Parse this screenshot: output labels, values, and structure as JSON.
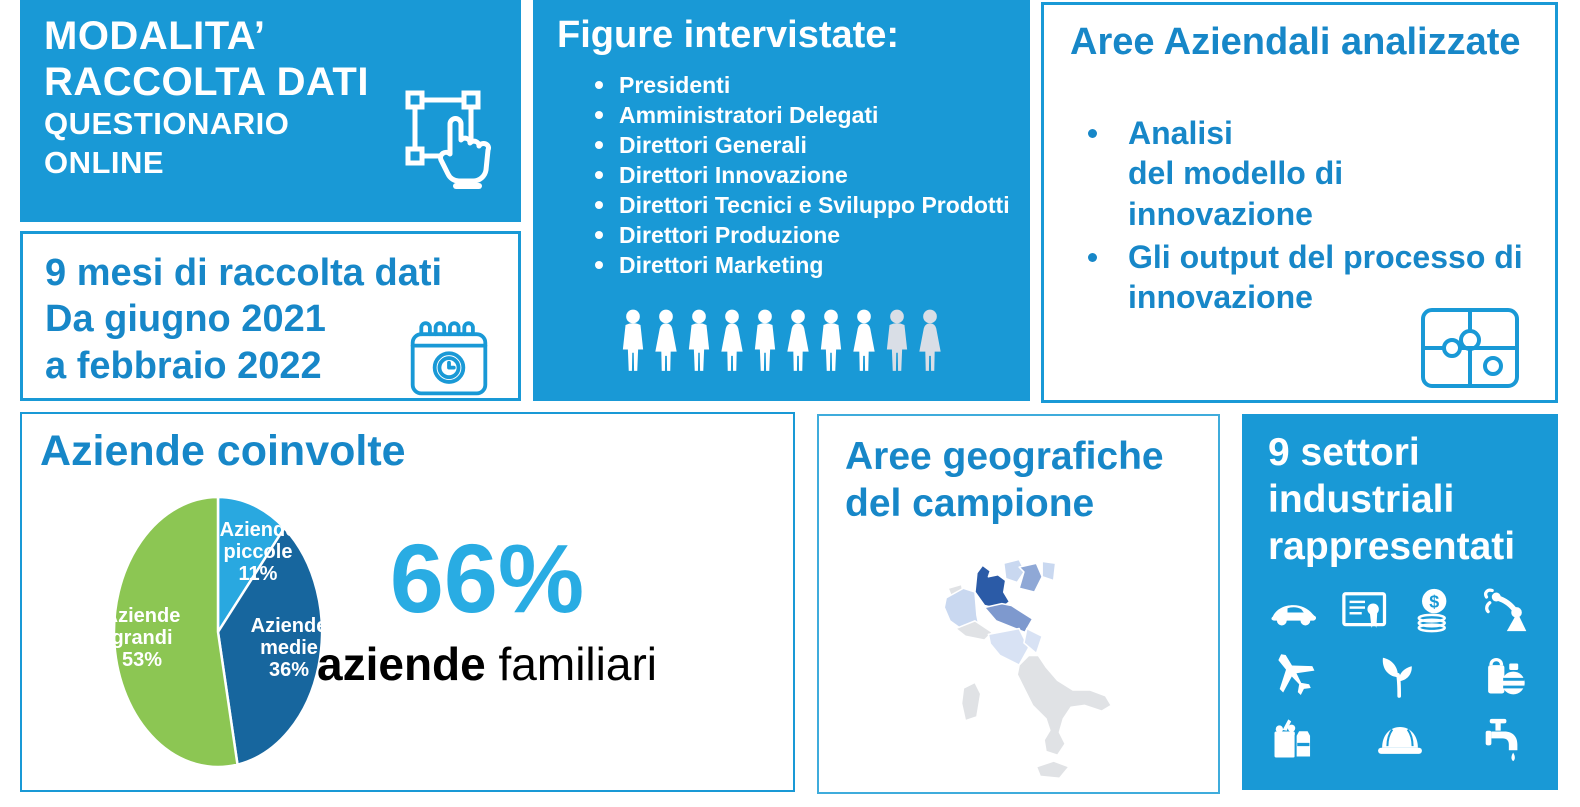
{
  "palette": {
    "primary_blue": "#1999D6",
    "title_blue": "#1787C8",
    "accent_cyan": "#29ACE3",
    "card_border": "#1999D6",
    "card_border_light": "#3FACDC",
    "people_white": "#FFFFFF",
    "people_gray": "#D9DEE6",
    "map_colors": {
      "dark": "#2B5BA7",
      "mid": "#7E99CE",
      "mid2": "#8FA8D6",
      "light": "#C9D8F0",
      "pale": "#D8E2F4",
      "gray": "#E0E2E5"
    }
  },
  "cards": {
    "modalita": {
      "title_line1": "MODALITA’",
      "title_line2": "RACCOLTA DATI",
      "subtitle_line1": "QUESTIONARIO",
      "subtitle_line2": "ONLINE",
      "icon": "tap-select-icon"
    },
    "mesi": {
      "line1": "9 mesi di raccolta dati",
      "line2": "Da giugno 2021",
      "line3": "a febbraio 2022",
      "icon": "calendar-clock-icon"
    },
    "figure": {
      "title": "Figure intervistate:",
      "items": [
        "Presidenti",
        "Amministratori Delegati",
        "Direttori Generali",
        "Direttori Innovazione",
        "Direttori Tecnici e Sviluppo Prodotti",
        "Direttori Produzione",
        "Direttori Marketing"
      ],
      "people": [
        "male",
        "female",
        "male",
        "female",
        "male",
        "female",
        "male",
        "female",
        "male-gray",
        "female-gray"
      ]
    },
    "aree_aziendali": {
      "title": "Aree Aziendali analizzate",
      "items": [
        "Analisi\ndel modello di innovazione",
        "Gli output del processo di innovazione"
      ],
      "icon": "puzzle-icon"
    },
    "aziende": {
      "title": "Aziende coinvolte",
      "stat_value": "66%",
      "stat_label_bold": "aziende",
      "stat_label_rest": " familiari"
    },
    "geo": {
      "title_line1": "Aree geografiche",
      "title_line2": "del campione",
      "map": "italy-choropleth"
    },
    "settori": {
      "title_line1": "9 settori",
      "title_line2": "industriali",
      "title_line3": "rappresentati",
      "icon_rows": [
        [
          "car-icon",
          "certificate-icon",
          "coins-icon",
          "robot-arm-icon"
        ],
        [
          "airplane-icon",
          "sprout-icon",
          "chemical-icon"
        ],
        [
          "groceries-icon",
          "helmet-icon",
          "faucet-icon"
        ]
      ]
    }
  },
  "chart_data": {
    "type": "pie",
    "title": "Aziende coinvolte",
    "slices": [
      {
        "label": "Aziende piccole",
        "value": 11
      },
      {
        "label": "Aziende medie",
        "value": 36
      },
      {
        "label": "Aziende grandi",
        "value": 53
      }
    ],
    "unit": "%",
    "colors": [
      "#29A8E0",
      "#17669E",
      "#8CC653"
    ],
    "start_angle_deg": -90,
    "direction": "clockwise",
    "label_position": "inside",
    "annotation": "66% aziende familiari"
  }
}
